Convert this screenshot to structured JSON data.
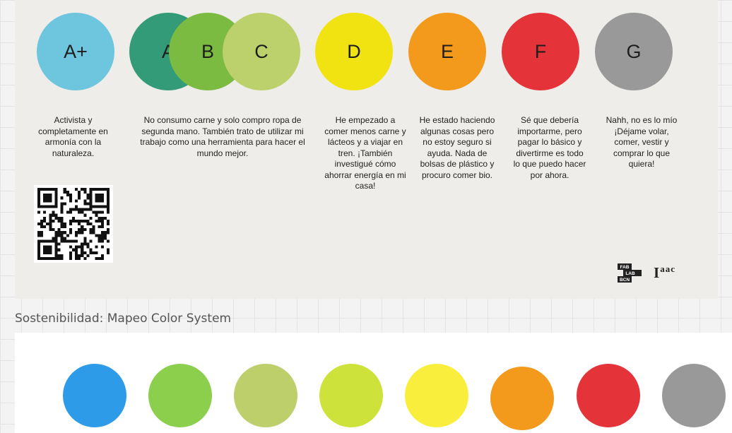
{
  "board": {
    "ratings": [
      {
        "label": "A+",
        "color": "#6ec6de",
        "description": "Activista y completamente en armonía con la naturaleza."
      },
      {
        "label": "A",
        "color": "#339b77"
      },
      {
        "label": "B",
        "color": "#7cbb42"
      },
      {
        "label": "C",
        "color": "#bcd06b",
        "description": "No consumo carne y solo compro ropa de segunda mano. También trato de utilizar mi trabajo como una herramienta para hacer el mundo mejor."
      },
      {
        "label": "D",
        "color": "#f1e312",
        "description": "He empezado a comer menos carne y lácteos y a viajar en tren. ¡También investigué cómo ahorrar energía en mi casa!"
      },
      {
        "label": "E",
        "color": "#f39a1d",
        "description": "He estado haciendo algunas cosas pero no estoy seguro si ayuda. Nada de bolsas de plástico y procuro comer bio."
      },
      {
        "label": "F",
        "color": "#e5333a",
        "description": "Sé que debería importarme, pero pagar lo básico y divertirme es todo lo que puedo hacer por ahora."
      },
      {
        "label": "G",
        "color": "#999999",
        "description": "Nahh, no es lo mío ¡Déjame volar, comer, vestir y comprar lo que quiera!"
      }
    ],
    "logos": {
      "fablab": [
        "FAB",
        "LAB",
        "BCN"
      ],
      "iaac_main": "I",
      "iaac_sup": "aac"
    }
  },
  "frame": {
    "title": "Sostenibilidad: Mapeo Color System",
    "swatches": [
      "#2e9be9",
      "#8ccf4d",
      "#bccf6b",
      "#cde23a",
      "#f9ee3c",
      "#f39a1d",
      "#e5333a",
      "#999999"
    ]
  }
}
